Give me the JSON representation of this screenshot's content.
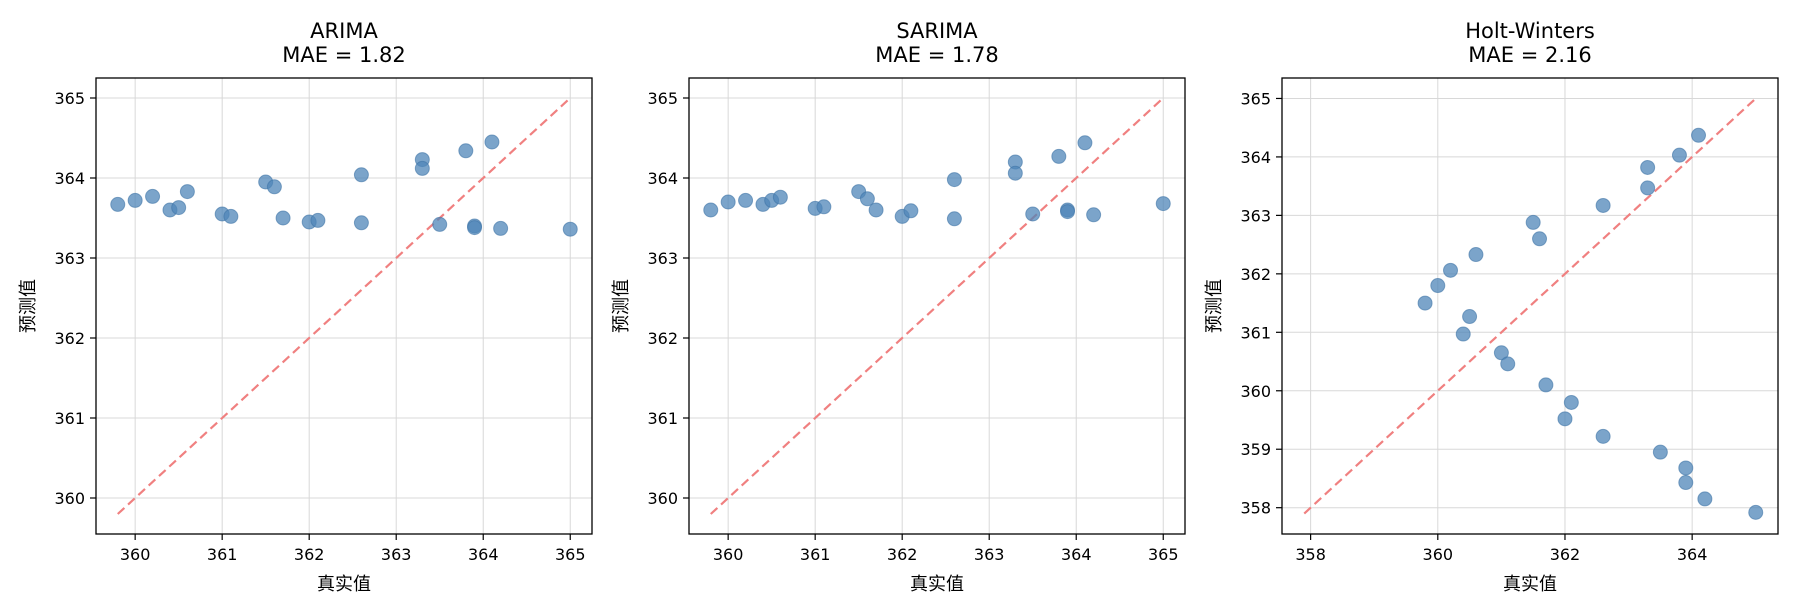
{
  "chart_data": [
    {
      "type": "scatter",
      "title": "ARIMA",
      "subtitle": "MAE = 1.82",
      "xlabel": "真实值",
      "ylabel": "预测值",
      "xlim": [
        359.55,
        365.25
      ],
      "ylim": [
        359.55,
        365.25
      ],
      "xticks": [
        360,
        361,
        362,
        363,
        364,
        365
      ],
      "yticks": [
        360,
        361,
        362,
        363,
        364,
        365
      ],
      "reference_line": [
        359.8,
        365.0
      ],
      "grid": true,
      "color": "#4f86b8",
      "x": [
        359.8,
        360.0,
        360.2,
        360.4,
        360.5,
        360.6,
        361.0,
        361.1,
        361.5,
        361.6,
        361.7,
        362.0,
        362.1,
        362.6,
        362.6,
        363.3,
        363.3,
        363.5,
        363.8,
        363.9,
        363.9,
        364.1,
        364.2,
        365.0
      ],
      "y": [
        363.67,
        363.72,
        363.77,
        363.6,
        363.63,
        363.83,
        363.55,
        363.52,
        363.95,
        363.89,
        363.5,
        363.45,
        363.47,
        363.44,
        364.04,
        364.23,
        364.12,
        363.42,
        364.34,
        363.4,
        363.38,
        364.45,
        363.37,
        363.36
      ]
    },
    {
      "type": "scatter",
      "title": "SARIMA",
      "subtitle": "MAE = 1.78",
      "xlabel": "真实值",
      "ylabel": "预测值",
      "xlim": [
        359.55,
        365.25
      ],
      "ylim": [
        359.55,
        365.25
      ],
      "xticks": [
        360,
        361,
        362,
        363,
        364,
        365
      ],
      "yticks": [
        360,
        361,
        362,
        363,
        364,
        365
      ],
      "reference_line": [
        359.8,
        365.0
      ],
      "grid": true,
      "color": "#4f86b8",
      "x": [
        359.8,
        360.0,
        360.2,
        360.4,
        360.5,
        360.6,
        361.0,
        361.1,
        361.5,
        361.6,
        361.7,
        362.0,
        362.1,
        362.6,
        362.6,
        363.3,
        363.3,
        363.5,
        363.8,
        363.9,
        363.9,
        364.1,
        364.2,
        365.0
      ],
      "y": [
        363.6,
        363.7,
        363.72,
        363.67,
        363.72,
        363.76,
        363.62,
        363.64,
        363.83,
        363.74,
        363.6,
        363.52,
        363.59,
        363.49,
        363.98,
        364.2,
        364.06,
        363.55,
        364.27,
        363.6,
        363.58,
        364.44,
        363.54,
        363.68
      ]
    },
    {
      "type": "scatter",
      "title": "Holt-Winters",
      "subtitle": "MAE = 2.16",
      "xlabel": "真实值",
      "ylabel": "预测值",
      "xlim": [
        357.55,
        365.35
      ],
      "ylim": [
        357.55,
        365.35
      ],
      "xticks": [
        358,
        360,
        362,
        364
      ],
      "yticks": [
        358,
        359,
        360,
        361,
        362,
        363,
        364,
        365
      ],
      "reference_line": [
        357.9,
        365.0
      ],
      "grid": true,
      "color": "#4f86b8",
      "x": [
        359.8,
        360.0,
        360.2,
        360.4,
        360.5,
        360.6,
        361.0,
        361.1,
        361.5,
        361.6,
        361.7,
        362.0,
        362.1,
        362.6,
        362.6,
        363.3,
        363.3,
        363.5,
        363.8,
        363.9,
        363.9,
        364.1,
        364.2,
        365.0
      ],
      "y": [
        361.5,
        361.8,
        362.06,
        360.97,
        361.27,
        362.33,
        360.65,
        360.46,
        362.88,
        362.6,
        360.1,
        359.52,
        359.8,
        359.22,
        363.17,
        363.82,
        363.47,
        358.95,
        364.03,
        358.68,
        358.43,
        364.37,
        358.15,
        357.92
      ]
    }
  ]
}
